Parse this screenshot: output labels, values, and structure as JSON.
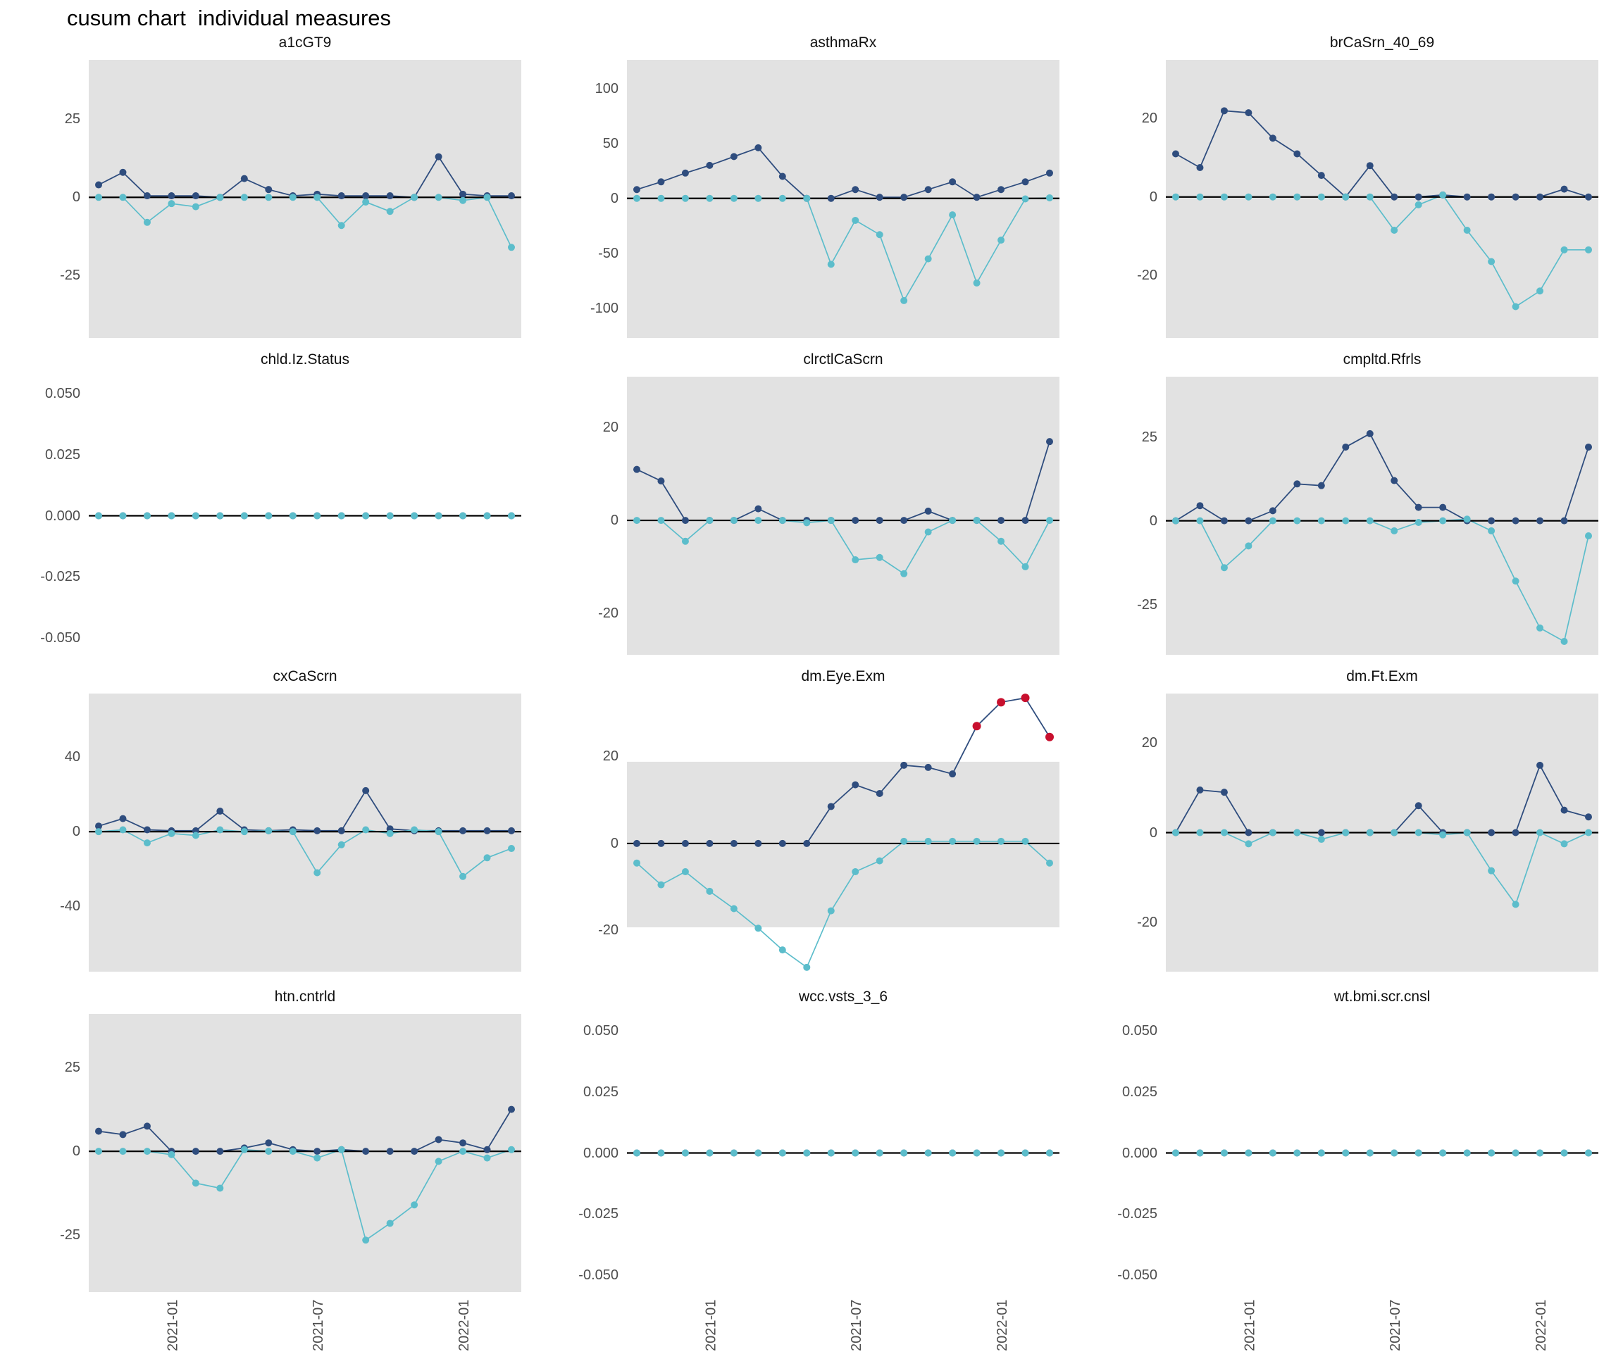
{
  "figure_title": "cusum chart  individual measures",
  "colors": {
    "upper_series": "#2F4D7E",
    "lower_series": "#5CBDCB",
    "signal": "#C8102E",
    "band": "#E2E2E2",
    "zero_line": "#000000",
    "tick_text": "#4d4d4d"
  },
  "x_axis": {
    "tick_labels": [
      "2021-01",
      "2021-07",
      "2022-01"
    ],
    "tick_point_indices": [
      3,
      9,
      15
    ],
    "n_points": 18,
    "rotation_degrees": 90
  },
  "legend": {
    "shown": false
  },
  "chart_data": [
    {
      "type": "line",
      "title": "a1cGT9",
      "row": 0,
      "col": 0,
      "ylim": [
        -45,
        44
      ],
      "yticks": [
        {
          "v": 25,
          "label": "25"
        },
        {
          "v": 0,
          "label": "0"
        },
        {
          "v": -25,
          "label": "-25"
        }
      ],
      "band": "full",
      "series": [
        {
          "name": "cusum-upper",
          "values": [
            4,
            8,
            0.5,
            0.5,
            0.5,
            0,
            6,
            2.5,
            0.5,
            1,
            0.5,
            0.5,
            0.5,
            0,
            13,
            1,
            0.5,
            0.5
          ]
        },
        {
          "name": "cusum-lower",
          "values": [
            0,
            0,
            -8,
            -2,
            -3,
            0,
            0,
            0,
            0,
            0,
            -9,
            -1.5,
            -4.5,
            0,
            0,
            -1,
            0,
            -16
          ]
        }
      ],
      "signal_upper_indices": []
    },
    {
      "type": "line",
      "title": "asthmaRx",
      "row": 0,
      "col": 1,
      "ylim": [
        -127,
        126
      ],
      "yticks": [
        {
          "v": 100,
          "label": "100"
        },
        {
          "v": 50,
          "label": "50"
        },
        {
          "v": 0,
          "label": "0"
        },
        {
          "v": -50,
          "label": "-50"
        },
        {
          "v": -100,
          "label": "-100"
        }
      ],
      "band": "full",
      "series": [
        {
          "name": "cusum-upper",
          "values": [
            8,
            15,
            23,
            30,
            38,
            46,
            20,
            0,
            0,
            8,
            1,
            1,
            8,
            15,
            1,
            8,
            15,
            23
          ]
        },
        {
          "name": "cusum-lower",
          "values": [
            0,
            0,
            0,
            0,
            0,
            0,
            0,
            0,
            -60,
            -20,
            -33,
            -93,
            -55,
            -15,
            -77,
            -38,
            -0.5,
            0.5
          ]
        }
      ],
      "signal_upper_indices": []
    },
    {
      "type": "line",
      "title": "brCaSrn_40_69",
      "row": 0,
      "col": 2,
      "ylim": [
        -36,
        35
      ],
      "yticks": [
        {
          "v": 20,
          "label": "20"
        },
        {
          "v": 0,
          "label": "0"
        },
        {
          "v": -20,
          "label": "-20"
        }
      ],
      "band": "full",
      "series": [
        {
          "name": "cusum-upper",
          "values": [
            11,
            7.5,
            22,
            21.5,
            15,
            11,
            5.5,
            0,
            8,
            0,
            0,
            0.5,
            0,
            0,
            0,
            0,
            2,
            0
          ]
        },
        {
          "name": "cusum-lower",
          "values": [
            0,
            0,
            0,
            0,
            0,
            0,
            0,
            0,
            0,
            -8.5,
            -2,
            0.5,
            -8.5,
            -16.5,
            -28,
            -24,
            -13.5,
            -13.5
          ]
        }
      ],
      "signal_upper_indices": []
    },
    {
      "type": "line",
      "title": "chld.Iz.Status",
      "row": 1,
      "col": 0,
      "ylim": [
        -0.057,
        0.057
      ],
      "yticks": [
        {
          "v": 0.05,
          "label": "0.050"
        },
        {
          "v": 0.025,
          "label": "0.025"
        },
        {
          "v": 0,
          "label": "0.000"
        },
        {
          "v": -0.025,
          "label": "-0.025"
        },
        {
          "v": -0.05,
          "label": "-0.050"
        }
      ],
      "band": null,
      "series": [
        {
          "name": "cusum-upper",
          "values": [
            0,
            0,
            0,
            0,
            0,
            0,
            0,
            0,
            0,
            0,
            0,
            0,
            0,
            0,
            0,
            0,
            0,
            0
          ]
        },
        {
          "name": "cusum-lower",
          "values": [
            0,
            0,
            0,
            0,
            0,
            0,
            0,
            0,
            0,
            0,
            0,
            0,
            0,
            0,
            0,
            0,
            0,
            0
          ]
        }
      ],
      "signal_upper_indices": []
    },
    {
      "type": "line",
      "title": "clrctlCaScrn",
      "row": 1,
      "col": 1,
      "ylim": [
        -29,
        31
      ],
      "yticks": [
        {
          "v": 20,
          "label": "20"
        },
        {
          "v": 0,
          "label": "0"
        },
        {
          "v": -20,
          "label": "-20"
        }
      ],
      "band": "full",
      "series": [
        {
          "name": "cusum-upper",
          "values": [
            11,
            8.5,
            0,
            0,
            0,
            2.5,
            0,
            0,
            0,
            0,
            0,
            0,
            2,
            0,
            0,
            0,
            0,
            17
          ]
        },
        {
          "name": "cusum-lower",
          "values": [
            0,
            0,
            -4.5,
            0,
            0,
            0,
            0,
            -0.5,
            0,
            -8.5,
            -8,
            -11.5,
            -2.5,
            0,
            0,
            -4.5,
            -10,
            0
          ]
        }
      ],
      "signal_upper_indices": []
    },
    {
      "type": "line",
      "title": "cmpltd.Rfrls",
      "row": 1,
      "col": 2,
      "ylim": [
        -40,
        43
      ],
      "yticks": [
        {
          "v": 25,
          "label": "25"
        },
        {
          "v": 0,
          "label": "0"
        },
        {
          "v": -25,
          "label": "-25"
        }
      ],
      "band": "full",
      "series": [
        {
          "name": "cusum-upper",
          "values": [
            0,
            4.5,
            0,
            0,
            3,
            11,
            10.5,
            22,
            26,
            12,
            4,
            4,
            0,
            0,
            0,
            0,
            0,
            22
          ]
        },
        {
          "name": "cusum-lower",
          "values": [
            0,
            0,
            -14,
            -7.5,
            0,
            0,
            0,
            0,
            0,
            -3,
            -0.5,
            0,
            0.5,
            -3,
            -18,
            -32,
            -36,
            -4.5
          ]
        }
      ],
      "signal_upper_indices": []
    },
    {
      "type": "line",
      "title": "cxCaScrn",
      "row": 2,
      "col": 0,
      "ylim": [
        -75,
        74
      ],
      "yticks": [
        {
          "v": 40,
          "label": "40"
        },
        {
          "v": 0,
          "label": "0"
        },
        {
          "v": -40,
          "label": "-40"
        }
      ],
      "band": "full",
      "series": [
        {
          "name": "cusum-upper",
          "values": [
            3,
            7,
            1,
            0.5,
            0.5,
            11,
            1,
            0.5,
            1,
            0.5,
            0.5,
            22,
            1.5,
            0.5,
            0.5,
            0.5,
            0.5,
            0.5
          ]
        },
        {
          "name": "cusum-lower",
          "values": [
            0,
            1,
            -6,
            -1,
            -2,
            1,
            0,
            0.5,
            0,
            -22,
            -7,
            1,
            -1,
            1,
            0,
            -24,
            -14,
            -9
          ]
        }
      ],
      "signal_upper_indices": []
    },
    {
      "type": "line",
      "title": "dm.Eye.Exm",
      "row": 2,
      "col": 1,
      "ylim": [
        -29.5,
        34.5
      ],
      "yticks": [
        {
          "v": 20,
          "label": "20"
        },
        {
          "v": 0,
          "label": "0"
        },
        {
          "v": -20,
          "label": "-20"
        }
      ],
      "band": [
        -19.3,
        18.8
      ],
      "series": [
        {
          "name": "cusum-upper",
          "values": [
            0,
            0,
            0,
            0,
            0,
            0,
            0,
            0,
            8.5,
            13.5,
            11.5,
            18,
            17.5,
            16,
            27,
            32.5,
            33.5,
            24.5
          ]
        },
        {
          "name": "cusum-lower",
          "values": [
            -4.5,
            -9.5,
            -6.5,
            -11,
            -15,
            -19.5,
            -24.5,
            -28.5,
            -15.5,
            -6.5,
            -4,
            0.5,
            0.5,
            0.5,
            0.5,
            0.5,
            0.5,
            -4.5
          ]
        }
      ],
      "signal_upper_indices": [
        14,
        15,
        16,
        17
      ]
    },
    {
      "type": "line",
      "title": "dm.Ft.Exm",
      "row": 2,
      "col": 2,
      "ylim": [
        -31,
        31
      ],
      "yticks": [
        {
          "v": 20,
          "label": "20"
        },
        {
          "v": 0,
          "label": "0"
        },
        {
          "v": -20,
          "label": "-20"
        }
      ],
      "band": "full",
      "series": [
        {
          "name": "cusum-upper",
          "values": [
            0,
            9.5,
            9,
            0,
            0,
            0,
            0,
            0,
            0,
            0,
            6,
            0,
            0,
            0,
            0,
            15,
            5,
            3.5
          ]
        },
        {
          "name": "cusum-lower",
          "values": [
            0,
            0,
            0,
            -2.5,
            0,
            0,
            -1.5,
            0,
            0,
            0,
            0,
            -0.5,
            0,
            -8.5,
            -16,
            0,
            -2.5,
            0
          ]
        }
      ],
      "signal_upper_indices": []
    },
    {
      "type": "line",
      "title": "htn.cntrld",
      "row": 3,
      "col": 0,
      "ylim": [
        -42,
        41
      ],
      "yticks": [
        {
          "v": 25,
          "label": "25"
        },
        {
          "v": 0,
          "label": "0"
        },
        {
          "v": -25,
          "label": "-25"
        }
      ],
      "band": "full",
      "series": [
        {
          "name": "cusum-upper",
          "values": [
            6,
            5,
            7.5,
            0,
            0,
            0,
            1,
            2.5,
            0.5,
            0,
            0.5,
            0,
            0,
            0,
            3.5,
            2.5,
            0.5,
            12.5
          ]
        },
        {
          "name": "cusum-lower",
          "values": [
            0,
            0,
            0,
            -1,
            -9.5,
            -11,
            0.5,
            0,
            0,
            -2,
            0.5,
            -26.5,
            -21.5,
            -16,
            -3,
            0,
            -2,
            0.5
          ]
        }
      ],
      "signal_upper_indices": []
    },
    {
      "type": "line",
      "title": "wcc.vsts_3_6",
      "row": 3,
      "col": 1,
      "ylim": [
        -0.057,
        0.057
      ],
      "yticks": [
        {
          "v": 0.05,
          "label": "0.050"
        },
        {
          "v": 0.025,
          "label": "0.025"
        },
        {
          "v": 0,
          "label": "0.000"
        },
        {
          "v": -0.025,
          "label": "-0.025"
        },
        {
          "v": -0.05,
          "label": "-0.050"
        }
      ],
      "band": null,
      "series": [
        {
          "name": "cusum-upper",
          "values": [
            0,
            0,
            0,
            0,
            0,
            0,
            0,
            0,
            0,
            0,
            0,
            0,
            0,
            0,
            0,
            0,
            0,
            0
          ]
        },
        {
          "name": "cusum-lower",
          "values": [
            0,
            0,
            0,
            0,
            0,
            0,
            0,
            0,
            0,
            0,
            0,
            0,
            0,
            0,
            0,
            0,
            0,
            0
          ]
        }
      ],
      "signal_upper_indices": []
    },
    {
      "type": "line",
      "title": "wt.bmi.scr.cnsl",
      "row": 3,
      "col": 2,
      "ylim": [
        -0.057,
        0.057
      ],
      "yticks": [
        {
          "v": 0.05,
          "label": "0.050"
        },
        {
          "v": 0.025,
          "label": "0.025"
        },
        {
          "v": 0,
          "label": "0.000"
        },
        {
          "v": -0.025,
          "label": "-0.025"
        },
        {
          "v": -0.05,
          "label": "-0.050"
        }
      ],
      "band": null,
      "series": [
        {
          "name": "cusum-upper",
          "values": [
            0,
            0,
            0,
            0,
            0,
            0,
            0,
            0,
            0,
            0,
            0,
            0,
            0,
            0,
            0,
            0,
            0,
            0
          ]
        },
        {
          "name": "cusum-lower",
          "values": [
            0,
            0,
            0,
            0,
            0,
            0,
            0,
            0,
            0,
            0,
            0,
            0,
            0,
            0,
            0,
            0,
            0,
            0
          ]
        }
      ],
      "signal_upper_indices": []
    }
  ]
}
